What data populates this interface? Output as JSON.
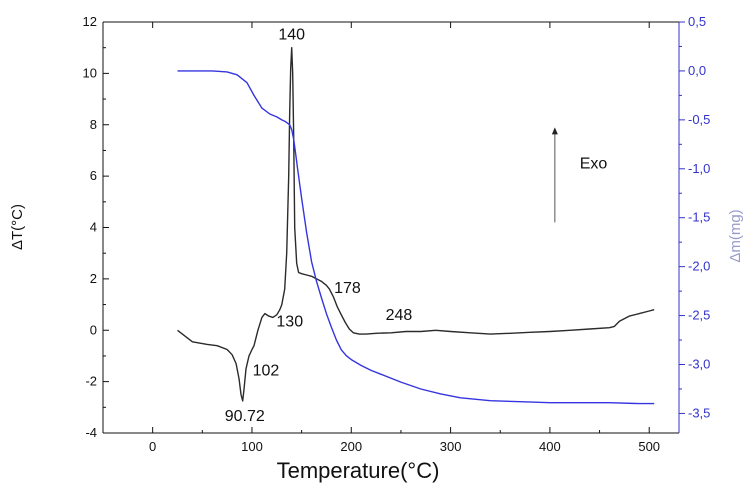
{
  "chart_data": {
    "type": "line",
    "title": "",
    "xlabel": "Temperature(°C)",
    "ylabel": "ΔT(°C)",
    "y2label": "Δm(mg)",
    "xlim": [
      -50,
      530
    ],
    "ylim": [
      -4,
      12
    ],
    "y2lim": [
      -3.7,
      0.5
    ],
    "x_ticks": [
      0,
      100,
      200,
      300,
      400,
      500
    ],
    "x_tick_labels": [
      "0",
      "100",
      "200",
      "300",
      "400",
      "500"
    ],
    "y_ticks": [
      -4,
      -2,
      0,
      2,
      4,
      6,
      8,
      10,
      12
    ],
    "y_tick_labels": [
      "-4",
      "-2",
      "0",
      "2",
      "4",
      "6",
      "8",
      "10",
      "12"
    ],
    "y2_ticks": [
      0.5,
      0.0,
      -0.5,
      -1.0,
      -1.5,
      -2.0,
      -2.5,
      -3.0,
      -3.5
    ],
    "y2_tick_labels": [
      "0,5",
      "0,0",
      "-0,5",
      "-1,0",
      "-1,5",
      "-2,0",
      "-2,5",
      "-3,0",
      "-3,5"
    ],
    "grid": false,
    "series": [
      {
        "axis": "left",
        "color": "#2b2b2b",
        "x": [
          25,
          40,
          55,
          65,
          75,
          80,
          84,
          87,
          89,
          90.72,
          92,
          94,
          97,
          100,
          102,
          106,
          110,
          113,
          117,
          121,
          125,
          128,
          130,
          133,
          135,
          137,
          138,
          139,
          140,
          141,
          142,
          143,
          145,
          147,
          150,
          155,
          160,
          165,
          170,
          175,
          178,
          182,
          186,
          190,
          194,
          198,
          202,
          208,
          215,
          225,
          240,
          255,
          270,
          285,
          300,
          320,
          340,
          360,
          380,
          400,
          420,
          440,
          460,
          465,
          470,
          480,
          490,
          500,
          505
        ],
        "y": [
          0.0,
          -0.45,
          -0.55,
          -0.6,
          -0.75,
          -0.95,
          -1.3,
          -1.9,
          -2.5,
          -2.75,
          -2.3,
          -1.5,
          -1.0,
          -0.75,
          -0.6,
          0.0,
          0.5,
          0.65,
          0.55,
          0.5,
          0.6,
          0.8,
          1.0,
          1.6,
          3.0,
          6.0,
          8.5,
          10.2,
          11.0,
          10.0,
          7.5,
          4.0,
          2.6,
          2.25,
          2.2,
          2.15,
          2.1,
          2.0,
          1.9,
          1.75,
          1.6,
          1.3,
          0.9,
          0.6,
          0.3,
          0.05,
          -0.1,
          -0.15,
          -0.15,
          -0.12,
          -0.1,
          -0.05,
          -0.05,
          0.0,
          -0.05,
          -0.1,
          -0.15,
          -0.12,
          -0.08,
          -0.05,
          0.0,
          0.05,
          0.1,
          0.15,
          0.35,
          0.55,
          0.65,
          0.75,
          0.8
        ]
      },
      {
        "axis": "right",
        "color": "#3535e0",
        "x": [
          25,
          40,
          60,
          75,
          85,
          95,
          102,
          110,
          118,
          125,
          130,
          134,
          138,
          140,
          142,
          144,
          146,
          150,
          155,
          160,
          165,
          170,
          175,
          180,
          185,
          190,
          195,
          200,
          210,
          220,
          230,
          250,
          270,
          290,
          310,
          340,
          370,
          400,
          430,
          460,
          490,
          505
        ],
        "y": [
          0.0,
          0.0,
          0.0,
          -0.01,
          -0.04,
          -0.12,
          -0.25,
          -0.38,
          -0.44,
          -0.47,
          -0.5,
          -0.52,
          -0.55,
          -0.6,
          -0.7,
          -0.85,
          -1.0,
          -1.3,
          -1.65,
          -1.95,
          -2.15,
          -2.32,
          -2.48,
          -2.62,
          -2.75,
          -2.85,
          -2.91,
          -2.95,
          -3.01,
          -3.06,
          -3.1,
          -3.18,
          -3.25,
          -3.3,
          -3.34,
          -3.37,
          -3.38,
          -3.39,
          -3.39,
          -3.39,
          -3.4,
          -3.4
        ]
      }
    ],
    "annotations": [
      {
        "text": "140",
        "x": 140,
        "y": 11.0
      },
      {
        "text": "178",
        "x": 178,
        "y": 1.6
      },
      {
        "text": "248",
        "x": 248,
        "y": -0.15
      },
      {
        "text": "130",
        "x": 130,
        "y": 1.0
      },
      {
        "text": "102",
        "x": 102,
        "y": -0.6
      },
      {
        "text": "90.72",
        "x": 90.72,
        "y": -2.75
      },
      {
        "text": "Exo",
        "x": 420,
        "y": 6.3
      }
    ],
    "arrow": {
      "x": 405,
      "y_from": 4.2,
      "y_to": 7.9
    },
    "left_axis_color": "#111111",
    "right_axis_color": "#3333cc"
  }
}
